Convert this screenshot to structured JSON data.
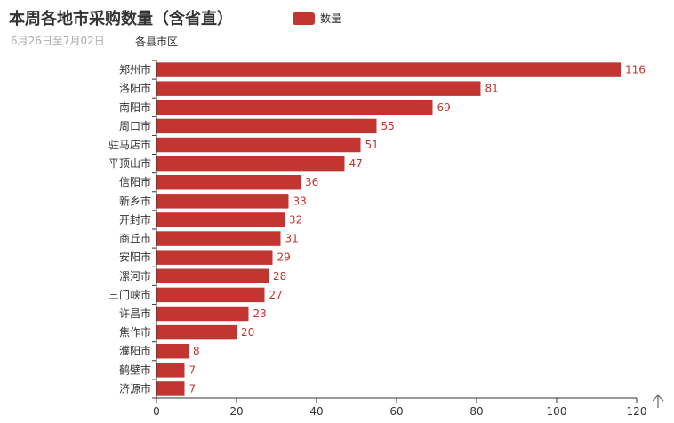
{
  "title": "本周各地市采购数量（含省直）",
  "subtitle": "6月26日至7月02日",
  "legend": {
    "label": "数量",
    "color": "#c23531"
  },
  "chart_data": {
    "type": "bar",
    "orientation": "horizontal",
    "y_axis_name": "各县市区",
    "categories": [
      "郑州市",
      "洛阳市",
      "南阳市",
      "周口市",
      "驻马店市",
      "平顶山市",
      "信阳市",
      "新乡市",
      "开封市",
      "商丘市",
      "安阳市",
      "漯河市",
      "三门峡市",
      "许昌市",
      "焦作市",
      "濮阳市",
      "鹤壁市",
      "济源市"
    ],
    "series": [
      {
        "name": "数量",
        "values": [
          116,
          81,
          69,
          55,
          51,
          47,
          36,
          33,
          32,
          31,
          29,
          28,
          27,
          23,
          20,
          8,
          7,
          7
        ]
      }
    ],
    "xlim": [
      0,
      120
    ],
    "xticks": [
      0,
      20,
      40,
      60,
      80,
      100,
      120
    ],
    "data_labels": true,
    "grid": false,
    "legend_position": "top"
  },
  "toolbox": {
    "icon": "arrow-up-icon"
  }
}
